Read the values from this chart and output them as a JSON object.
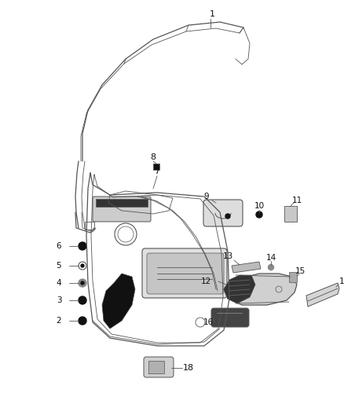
{
  "bg_color": "#ffffff",
  "line_color": "#555555",
  "dark_color": "#111111",
  "fig_width": 4.38,
  "fig_height": 5.33,
  "dpi": 100
}
